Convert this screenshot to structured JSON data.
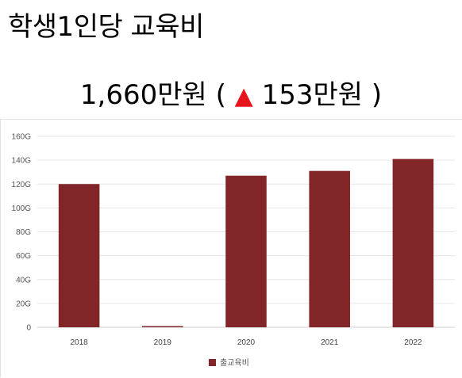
{
  "page": {
    "title": "학생1인당 교육비",
    "headline_value": "1,660만원",
    "open_paren": "(",
    "change_icon": "up-triangle-icon",
    "change_symbol": "▲",
    "change_value": "153만원",
    "close_paren": ")"
  },
  "colors": {
    "bar": "#812528",
    "up_triangle": "#e8141c",
    "grid": "#e6e6e6"
  },
  "chart_data": {
    "type": "bar",
    "title": "",
    "xlabel": "",
    "ylabel": "",
    "categories": [
      "2018",
      "2019",
      "2020",
      "2021",
      "2022"
    ],
    "series": [
      {
        "name": "출교육비",
        "values": [
          120,
          1,
          127,
          131,
          141
        ]
      }
    ],
    "ylim": [
      0,
      160
    ],
    "yticks": [
      0,
      20,
      40,
      60,
      80,
      100,
      120,
      140,
      160
    ],
    "ytick_labels": [
      "0",
      "20G",
      "40G",
      "60G",
      "80G",
      "100G",
      "120G",
      "140G",
      "160G"
    ],
    "grid": true,
    "legend": "bottom-center"
  }
}
